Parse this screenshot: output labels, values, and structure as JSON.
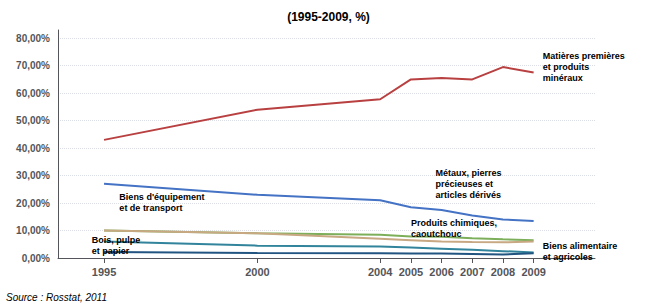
{
  "chart_data": {
    "type": "line",
    "title": "(1995-2009, %)",
    "source": "Source : Rosstat, 2011",
    "x": [
      1995,
      2000,
      2004,
      2005,
      2006,
      2007,
      2008,
      2009
    ],
    "series": [
      {
        "color": "#B94040",
        "values": [
          0.43,
          0.54,
          0.578,
          0.65,
          0.655,
          0.65,
          0.695,
          0.675
        ]
      },
      {
        "color": "#4472C4",
        "values": [
          0.27,
          0.23,
          0.21,
          0.185,
          0.175,
          0.155,
          0.14,
          0.135
        ]
      },
      {
        "color": "#7DAF5B",
        "values": [
          0.1,
          0.09,
          0.085,
          0.078,
          0.077,
          0.072,
          0.068,
          0.065
        ]
      },
      {
        "color": "#C8A882",
        "values": [
          0.1,
          0.09,
          0.07,
          0.065,
          0.06,
          0.058,
          0.057,
          0.06
        ]
      },
      {
        "color": "#31849B",
        "values": [
          0.06,
          0.045,
          0.042,
          0.038,
          0.034,
          0.03,
          0.025,
          0.02
        ]
      },
      {
        "color": "#215481",
        "values": [
          0.022,
          0.018,
          0.017,
          0.016,
          0.016,
          0.015,
          0.013,
          0.017
        ]
      }
    ],
    "annotations": [
      {
        "text": "Matières premières\net produits\nminéraux",
        "x": 2009.3,
        "y": 0.695
      },
      {
        "text": "Biens d'équipement\net de transport",
        "x": 1995.5,
        "y": 0.203
      },
      {
        "text": "Métaux, pierres\nprécieuses et\narticles dérivés",
        "x": 2005.8,
        "y": 0.27
      },
      {
        "text": "Produits chimiques,\ncaoutchouc",
        "x": 2005.0,
        "y": 0.108
      },
      {
        "text": "Bois, pulpe\net papier",
        "x": 1994.6,
        "y": 0.046
      },
      {
        "text": "Biens alimentaire\net agricoles",
        "x": 2009.3,
        "y": 0.024
      }
    ],
    "xlim": [
      1993.5,
      2011.0
    ],
    "xticks": [
      1995,
      2000,
      2004,
      2005,
      2006,
      2007,
      2008,
      2009
    ],
    "ylim": [
      0.0,
      0.83
    ],
    "yticks": [
      {
        "value": 0.0,
        "label": "0,00%"
      },
      {
        "value": 0.1,
        "label": "10,00%"
      },
      {
        "value": 0.2,
        "label": "20,00%"
      },
      {
        "value": 0.3,
        "label": "30,00%"
      },
      {
        "value": 0.4,
        "label": "40,00%"
      },
      {
        "value": 0.5,
        "label": "50,00%"
      },
      {
        "value": 0.6,
        "label": "60,00%"
      },
      {
        "value": 0.7,
        "label": "70,00%"
      },
      {
        "value": 0.8,
        "label": "80,00%"
      }
    ],
    "grid": true
  }
}
